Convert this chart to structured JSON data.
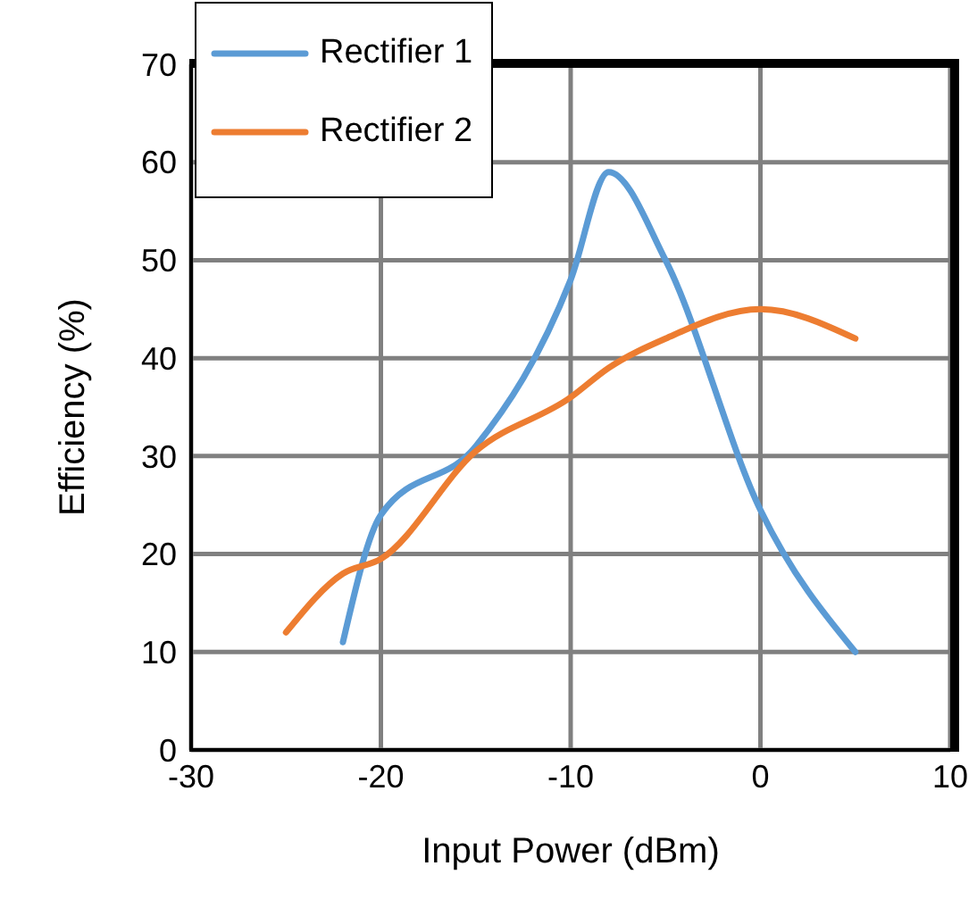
{
  "chart_data": {
    "type": "line",
    "xlabel": "Input Power (dBm)",
    "ylabel": "Efficiency (%)",
    "xlim": [
      -30,
      10
    ],
    "xticks": [
      -30,
      -20,
      -10,
      0,
      10
    ],
    "ylim": [
      0,
      70
    ],
    "yticks": [
      0,
      10,
      20,
      30,
      40,
      50,
      60,
      70
    ],
    "grid": true,
    "legend": "top left",
    "marker": "none",
    "line_style": "solid",
    "series": [
      {
        "name": "Rectifier 1",
        "color": "#5b9bd5",
        "x": [
          -22,
          -20,
          -15,
          -10,
          -8,
          -5,
          0,
          5
        ],
        "values": [
          11,
          24,
          31,
          48,
          59,
          50,
          24.5,
          10
        ]
      },
      {
        "name": "Rectifier 2",
        "color": "#ed7d31",
        "x": [
          -25,
          -22,
          -20,
          -15,
          -10,
          -8,
          -5,
          0,
          5
        ],
        "values": [
          12,
          18,
          19.5,
          30.5,
          36,
          39,
          42,
          45,
          42
        ]
      }
    ]
  }
}
